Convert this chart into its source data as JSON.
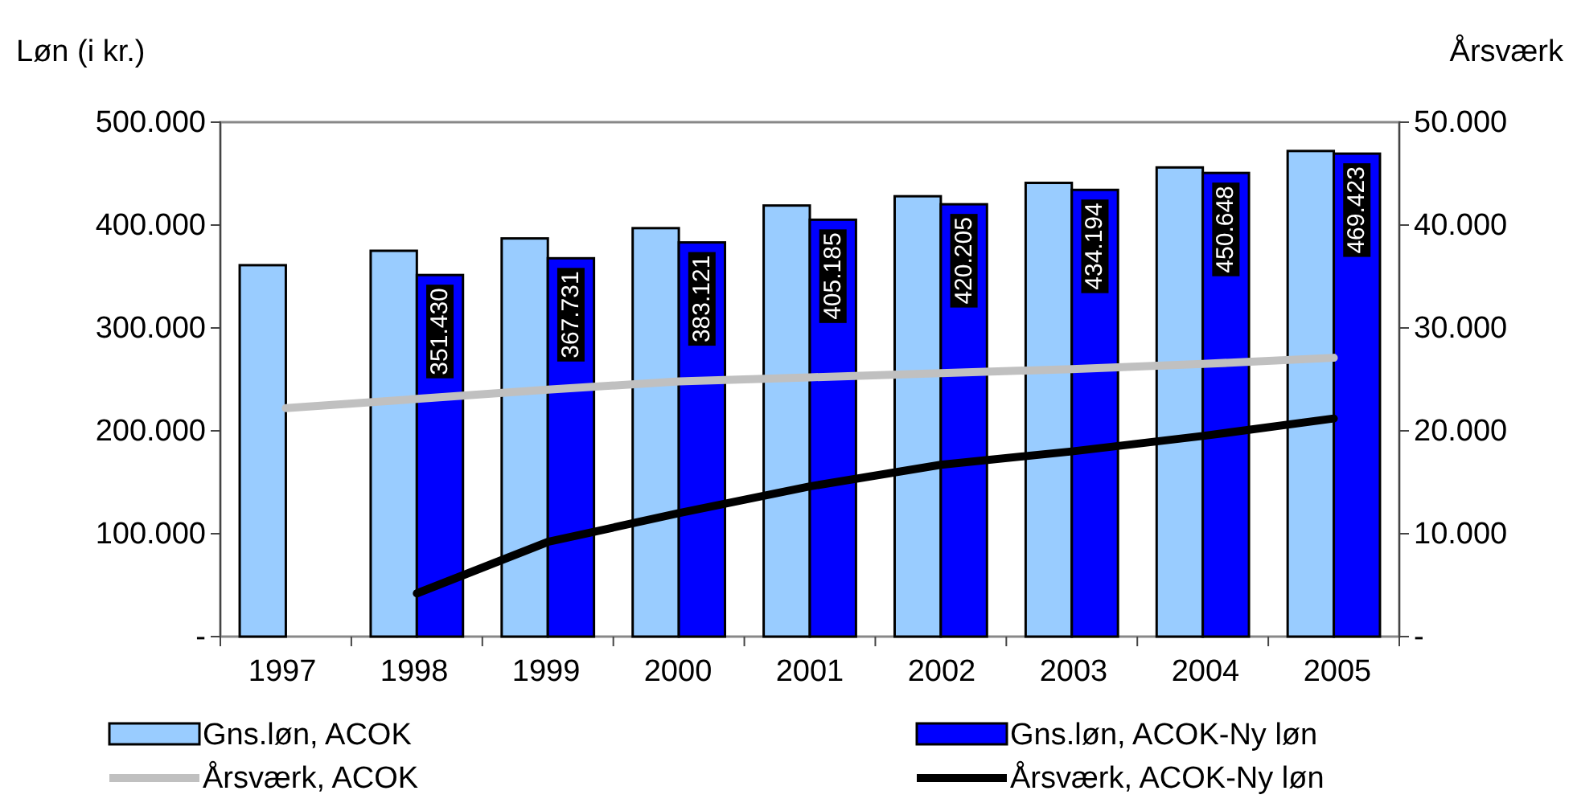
{
  "chart_data": {
    "type": "bar",
    "ylabel": "Løn (i kr.)",
    "y2label": "Årsværk",
    "categories": [
      "1997",
      "1998",
      "1999",
      "2000",
      "2001",
      "2002",
      "2003",
      "2004",
      "2005"
    ],
    "series": [
      {
        "name": "Gns.løn, ACOK",
        "color": "#99ccff",
        "values": [
          361000,
          375000,
          387000,
          397000,
          419000,
          428000,
          441000,
          456000,
          472000
        ]
      },
      {
        "name": "Gns.løn, ACOK-Ny løn",
        "color": "#0000ff",
        "values": [
          null,
          351430,
          367731,
          383121,
          405185,
          420205,
          434194,
          450648,
          469423
        ],
        "value_labels": [
          null,
          "351.430",
          "367.731",
          "383.121",
          "405.185",
          "420.205",
          "434.194",
          "450.648",
          "469.423"
        ]
      },
      {
        "name": "Årsværk, ACOK",
        "type": "line",
        "axis": "y2",
        "color": "#c0c0c0",
        "values": [
          22200,
          23100,
          24000,
          24800,
          25200,
          25600,
          26000,
          26500,
          27100
        ]
      },
      {
        "name": "Årsværk, ACOK-Ny løn",
        "type": "line",
        "axis": "y2",
        "color": "#000000",
        "values": [
          null,
          4200,
          9200,
          12000,
          14600,
          16700,
          18000,
          19500,
          21200
        ]
      }
    ],
    "ylim": [
      0,
      500000
    ],
    "yticks": [
      {
        "value": 0,
        "label": "-"
      },
      {
        "value": 100000,
        "label": "100.000"
      },
      {
        "value": 200000,
        "label": "200.000"
      },
      {
        "value": 300000,
        "label": "300.000"
      },
      {
        "value": 400000,
        "label": "400.000"
      },
      {
        "value": 500000,
        "label": "500.000"
      }
    ],
    "y2lim": [
      0,
      50000
    ],
    "y2ticks": [
      {
        "value": 0,
        "label": "-"
      },
      {
        "value": 10000,
        "label": "10.000"
      },
      {
        "value": 20000,
        "label": "20.000"
      },
      {
        "value": 30000,
        "label": "30.000"
      },
      {
        "value": 40000,
        "label": "40.000"
      },
      {
        "value": 50000,
        "label": "50.000"
      }
    ],
    "grid": false,
    "legend": "bottom",
    "marker": "none"
  }
}
